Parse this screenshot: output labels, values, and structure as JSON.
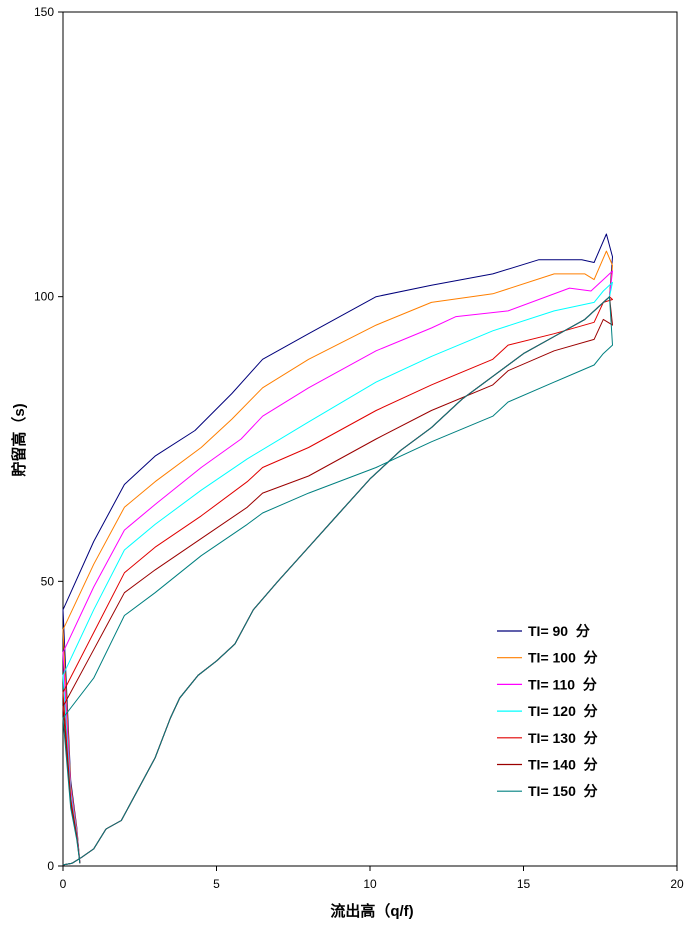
{
  "chart_data": {
    "type": "line",
    "xlabel": "流出高（q/f)",
    "ylabel": "貯留高（s)",
    "xlim": [
      0,
      20
    ],
    "ylim": [
      0,
      150
    ],
    "x_ticks": [
      "0",
      "5",
      "10",
      "15",
      "20"
    ],
    "y_ticks": [
      "0",
      "50",
      "100",
      "150"
    ],
    "grid": false,
    "legend_position": "lower-right",
    "rising_limb": [
      [
        0,
        0.2
      ],
      [
        0.3,
        0.5
      ],
      [
        0.6,
        1.5
      ],
      [
        1.0,
        3
      ],
      [
        1.4,
        6.5
      ],
      [
        1.9,
        8
      ],
      [
        2.5,
        14
      ],
      [
        3.0,
        19
      ],
      [
        3.5,
        26
      ],
      [
        3.8,
        29.5
      ],
      [
        4.4,
        33.5
      ],
      [
        5.0,
        36
      ],
      [
        5.6,
        39
      ],
      [
        6.2,
        45
      ],
      [
        7.0,
        50
      ],
      [
        8.0,
        56
      ],
      [
        9.0,
        62
      ],
      [
        10.0,
        68
      ],
      [
        11.0,
        73
      ],
      [
        12.0,
        77
      ],
      [
        13.0,
        82
      ],
      [
        14.0,
        86
      ],
      [
        15.0,
        90
      ],
      [
        16.0,
        93
      ],
      [
        17.0,
        96
      ],
      [
        17.8,
        100
      ]
    ],
    "series": [
      {
        "name": "TI= 90  分",
        "color": "#00007b",
        "recession": [
          [
            0,
            45
          ],
          [
            1.0,
            57
          ],
          [
            2.0,
            67
          ],
          [
            3.0,
            72
          ],
          [
            4.3,
            76.5
          ],
          [
            5.5,
            83
          ],
          [
            6.5,
            89
          ],
          [
            8.0,
            93.5
          ],
          [
            10.2,
            100
          ],
          [
            12.0,
            102
          ],
          [
            14.0,
            104
          ],
          [
            15.5,
            106.5
          ],
          [
            16.9,
            106.5
          ],
          [
            17.3,
            106
          ],
          [
            17.7,
            111
          ],
          [
            17.9,
            107
          ]
        ]
      },
      {
        "name": "TI= 100  分",
        "color": "#ff7f00",
        "recession": [
          [
            0,
            41.5
          ],
          [
            1.0,
            53
          ],
          [
            2.0,
            63
          ],
          [
            3.0,
            67.5
          ],
          [
            4.5,
            73.5
          ],
          [
            5.5,
            78.5
          ],
          [
            6.5,
            84
          ],
          [
            8.0,
            89
          ],
          [
            10.2,
            95
          ],
          [
            12.0,
            99
          ],
          [
            14.0,
            100.5
          ],
          [
            16.0,
            104
          ],
          [
            17.0,
            104
          ],
          [
            17.3,
            103
          ],
          [
            17.7,
            108
          ],
          [
            17.9,
            105.5
          ]
        ]
      },
      {
        "name": "TI= 110  分",
        "color": "#ff00ff",
        "recession": [
          [
            0,
            37.5
          ],
          [
            1.0,
            49
          ],
          [
            2.0,
            59
          ],
          [
            3.0,
            63.5
          ],
          [
            4.5,
            70
          ],
          [
            5.8,
            75
          ],
          [
            6.5,
            79
          ],
          [
            8.0,
            84
          ],
          [
            10.2,
            90.5
          ],
          [
            12.0,
            94.5
          ],
          [
            12.8,
            96.5
          ],
          [
            14.5,
            97.5
          ],
          [
            16.5,
            101.5
          ],
          [
            17.2,
            101
          ],
          [
            17.7,
            103.5
          ],
          [
            17.9,
            104.5
          ]
        ]
      },
      {
        "name": "TI= 120  分",
        "color": "#00ffff",
        "recession": [
          [
            0,
            33.5
          ],
          [
            1.0,
            45
          ],
          [
            2.0,
            55.5
          ],
          [
            3.0,
            60
          ],
          [
            4.5,
            66
          ],
          [
            6.0,
            71.5
          ],
          [
            8.0,
            78
          ],
          [
            10.2,
            85
          ],
          [
            12.0,
            89.5
          ],
          [
            14.0,
            94
          ],
          [
            16.0,
            97.5
          ],
          [
            17.3,
            99
          ],
          [
            17.6,
            101
          ],
          [
            17.9,
            102.5
          ]
        ]
      },
      {
        "name": "TI= 130  分",
        "color": "#e00000",
        "recession": [
          [
            0,
            30.5
          ],
          [
            1.0,
            41
          ],
          [
            2.0,
            51.5
          ],
          [
            3.0,
            56
          ],
          [
            4.5,
            61.5
          ],
          [
            6.0,
            67.5
          ],
          [
            6.5,
            70
          ],
          [
            8.0,
            73.5
          ],
          [
            10.2,
            80
          ],
          [
            12.0,
            84.5
          ],
          [
            14.0,
            89
          ],
          [
            14.5,
            91.5
          ],
          [
            16.0,
            93.5
          ],
          [
            17.3,
            95.5
          ],
          [
            17.6,
            99
          ],
          [
            17.9,
            99.5
          ]
        ]
      },
      {
        "name": "TI= 140  分",
        "color": "#9b0000",
        "recession": [
          [
            0,
            28
          ],
          [
            1.0,
            38
          ],
          [
            2.0,
            48
          ],
          [
            3.0,
            52
          ],
          [
            4.5,
            57.5
          ],
          [
            6.0,
            63
          ],
          [
            6.5,
            65.5
          ],
          [
            8.0,
            68.5
          ],
          [
            10.2,
            75
          ],
          [
            12.0,
            80
          ],
          [
            14.0,
            84.5
          ],
          [
            14.5,
            87
          ],
          [
            16.0,
            90.5
          ],
          [
            17.3,
            92.5
          ],
          [
            17.6,
            96
          ],
          [
            17.9,
            95
          ]
        ]
      },
      {
        "name": "TI= 150  分",
        "color": "#008080",
        "recession": [
          [
            0,
            26
          ],
          [
            1.0,
            33
          ],
          [
            2.0,
            44
          ],
          [
            3.0,
            48
          ],
          [
            4.5,
            54.5
          ],
          [
            6.0,
            60
          ],
          [
            6.5,
            62
          ],
          [
            8.0,
            65.5
          ],
          [
            10.2,
            70
          ],
          [
            12.0,
            74.5
          ],
          [
            14.0,
            79
          ],
          [
            14.5,
            81.5
          ],
          [
            16.0,
            85
          ],
          [
            17.3,
            88
          ],
          [
            17.6,
            90
          ],
          [
            17.9,
            91.5
          ]
        ]
      }
    ]
  }
}
